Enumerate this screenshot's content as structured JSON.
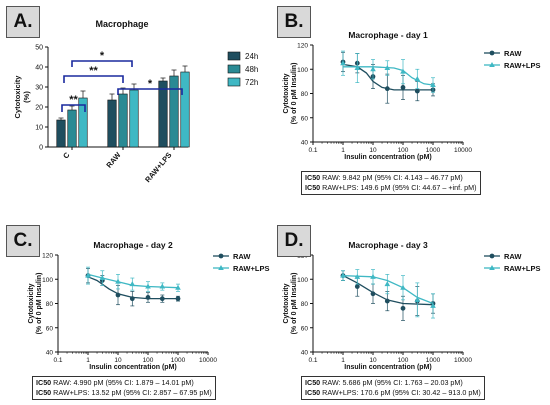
{
  "panels": {
    "A": {
      "label": "A."
    },
    "B": {
      "label": "B."
    },
    "C": {
      "label": "C."
    },
    "D": {
      "label": "D."
    }
  },
  "ic50": {
    "B": [
      {
        "tag": "IC50",
        "text": " RAW: 9.842 pM (95% CI: 4.143 – 46.77 pM)"
      },
      {
        "tag": "IC50",
        "text": " RAW+LPS: 149.6 pM (95% CI: 44.67 – +inf. pM)"
      }
    ],
    "C": [
      {
        "tag": "IC50",
        "text": " RAW: 4.990 pM (95% CI: 1.879 – 14.01 pM)"
      },
      {
        "tag": "IC50",
        "text": " RAW+LPS: 13.52 pM (95% CI: 2.857 – 67.95 pM)"
      }
    ],
    "D": [
      {
        "tag": "IC50",
        "text": " RAW: 5.686 pM (95% CI: 1.763 – 20.03 pM)"
      },
      {
        "tag": "IC50",
        "text": " RAW+LPS: 170.6 pM (95% CI: 30.42 – 913.0 pM)"
      }
    ]
  },
  "colors": {
    "c24": "#1f4e5f",
    "c48": "#2a8a94",
    "c72": "#3fb8c4",
    "raw": "#1f4e5f",
    "lps": "#3fb8c4"
  },
  "chart_data": [
    {
      "id": "A",
      "type": "bar",
      "title": "Macrophage",
      "ylabel": "Cytotoxicity\n(%)",
      "ylim": [
        0,
        50
      ],
      "yticks": [
        0,
        10,
        20,
        30,
        40,
        50
      ],
      "categories": [
        "C",
        "RAW",
        "RAW+LPS"
      ],
      "series": [
        {
          "name": "24h",
          "values": [
            13.5,
            23.5,
            33
          ],
          "err": [
            1,
            3,
            1.5
          ]
        },
        {
          "name": "48h",
          "values": [
            18.5,
            26.5,
            35.5
          ],
          "err": [
            2,
            3,
            3
          ]
        },
        {
          "name": "72h",
          "values": [
            24.5,
            28.5,
            37.5
          ],
          "err": [
            3.5,
            3,
            3
          ]
        }
      ],
      "annotations": [
        "**",
        "**",
        "*",
        "*"
      ]
    },
    {
      "id": "B",
      "type": "line",
      "title": "Macrophage - day 1",
      "xlabel": "Insulin concentration (pM)",
      "ylabel": "Cytotoxicity\n(% of 0 pM Insulin)",
      "xscale": "log",
      "xlim": [
        0.1,
        10000
      ],
      "xticks": [
        "0.1",
        "1",
        "10",
        "100",
        "1000",
        "10000"
      ],
      "ylim": [
        40,
        120
      ],
      "yticks": [
        40,
        60,
        80,
        100,
        120
      ],
      "series": [
        {
          "name": "RAW",
          "x": [
            1,
            3,
            10,
            30,
            100,
            300,
            1000
          ],
          "y": [
            106,
            105,
            94,
            84,
            85,
            82,
            83
          ],
          "err": [
            8,
            8,
            10,
            12,
            10,
            8,
            5
          ],
          "fit": [
            [
              1,
              104
            ],
            [
              3,
              102
            ],
            [
              6,
              97
            ],
            [
              10,
              90
            ],
            [
              20,
              85
            ],
            [
              50,
              83
            ],
            [
              1000,
              83
            ]
          ]
        },
        {
          "name": "RAW+LPS",
          "x": [
            1,
            3,
            10,
            30,
            100,
            300,
            1000
          ],
          "y": [
            105,
            101,
            100,
            101,
            98,
            92,
            87
          ],
          "err": [
            10,
            12,
            8,
            6,
            10,
            8,
            6
          ],
          "fit": [
            [
              1,
              102
            ],
            [
              10,
              102
            ],
            [
              50,
              101
            ],
            [
              100,
              99
            ],
            [
              200,
              93
            ],
            [
              500,
              88
            ],
            [
              1000,
              87
            ]
          ]
        }
      ]
    },
    {
      "id": "C",
      "type": "line",
      "title": "Macrophage - day 2",
      "xlabel": "Insulin concentration (pM)",
      "ylabel": "Cytotoxicity\n(% of 0 pM Insulin)",
      "xscale": "log",
      "xlim": [
        0.1,
        10000
      ],
      "xticks": [
        "0.1",
        "1",
        "10",
        "100",
        "1000",
        "10000"
      ],
      "ylim": [
        40,
        120
      ],
      "yticks": [
        40,
        60,
        80,
        100,
        120
      ],
      "series": [
        {
          "name": "RAW",
          "x": [
            1,
            3,
            10,
            30,
            100,
            300,
            1000
          ],
          "y": [
            103,
            99,
            87,
            84,
            85,
            84,
            84
          ],
          "err": [
            6,
            4,
            8,
            6,
            4,
            3,
            2
          ],
          "fit": [
            [
              1,
              102
            ],
            [
              2,
              99
            ],
            [
              5,
              92
            ],
            [
              10,
              88
            ],
            [
              30,
              85
            ],
            [
              100,
              84
            ],
            [
              1000,
              84
            ]
          ]
        },
        {
          "name": "RAW+LPS",
          "x": [
            1,
            3,
            10,
            30,
            100,
            300,
            1000
          ],
          "y": [
            103,
            101,
            98,
            96,
            94,
            94,
            93
          ],
          "err": [
            7,
            6,
            6,
            5,
            4,
            3,
            3
          ],
          "fit": [
            [
              1,
              104
            ],
            [
              3,
              101
            ],
            [
              10,
              98
            ],
            [
              30,
              95
            ],
            [
              100,
              94
            ],
            [
              1000,
              93
            ]
          ]
        }
      ]
    },
    {
      "id": "D",
      "type": "line",
      "title": "Macrophage - day 3",
      "xlabel": "Insulin concentration (pM)",
      "ylabel": "Cytotoxicity\n(% of 0 pM Insulin)",
      "xscale": "log",
      "xlim": [
        0.1,
        10000
      ],
      "xticks": [
        "0.1",
        "1",
        "10",
        "100",
        "1000",
        "10000"
      ],
      "ylim": [
        40,
        120
      ],
      "yticks": [
        40,
        60,
        80,
        100,
        120
      ],
      "series": [
        {
          "name": "RAW",
          "x": [
            1,
            3,
            10,
            30,
            100,
            300,
            1000
          ],
          "y": [
            103,
            94,
            88,
            82,
            76,
            82,
            80
          ],
          "err": [
            4,
            8,
            8,
            8,
            10,
            12,
            8
          ],
          "fit": [
            [
              1,
              103
            ],
            [
              3,
              97
            ],
            [
              10,
              89
            ],
            [
              30,
              83
            ],
            [
              100,
              80
            ],
            [
              1000,
              79
            ]
          ]
        },
        {
          "name": "RAW+LPS",
          "x": [
            1,
            3,
            10,
            30,
            100,
            300,
            1000
          ],
          "y": [
            103,
            102,
            102,
            96,
            93,
            83,
            78
          ],
          "err": [
            4,
            6,
            6,
            8,
            10,
            14,
            10
          ],
          "fit": [
            [
              1,
              103
            ],
            [
              10,
              102
            ],
            [
              30,
              99
            ],
            [
              100,
              93
            ],
            [
              300,
              85
            ],
            [
              1000,
              80
            ]
          ]
        }
      ]
    }
  ]
}
